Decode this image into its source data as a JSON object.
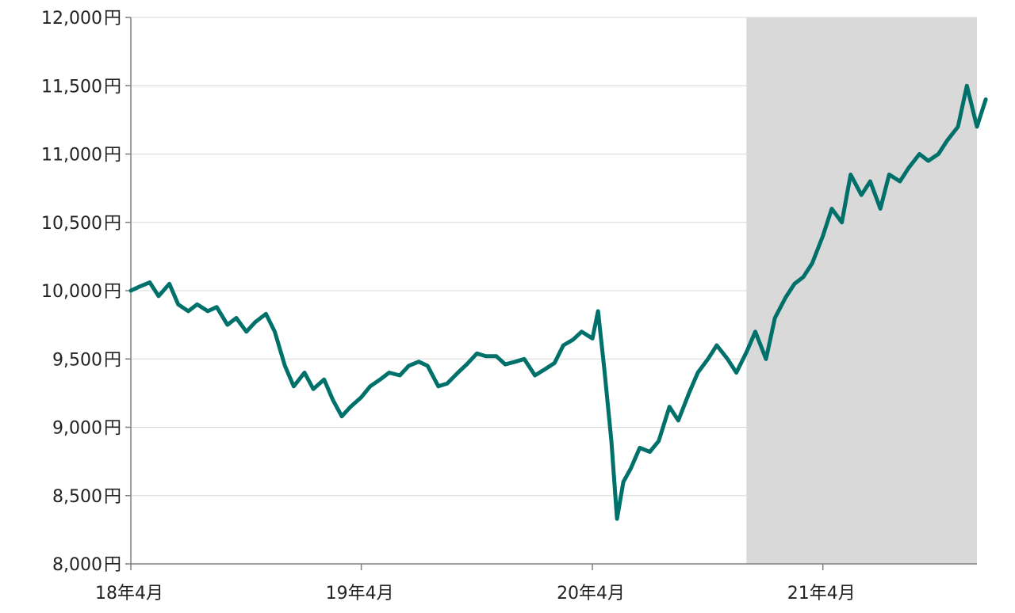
{
  "chart_data": {
    "type": "line",
    "title": "",
    "xlabel": "",
    "ylabel": "",
    "ylim": [
      8000,
      12000
    ],
    "yticks": [
      {
        "value": 8000,
        "label": "8,000円"
      },
      {
        "value": 8500,
        "label": "8,500円"
      },
      {
        "value": 9000,
        "label": "9,000円"
      },
      {
        "value": 9500,
        "label": "9,500円"
      },
      {
        "value": 10000,
        "label": "10,000円"
      },
      {
        "value": 10500,
        "label": "10,500円"
      },
      {
        "value": 11000,
        "label": "11,000円"
      },
      {
        "value": 11500,
        "label": "11,500円"
      },
      {
        "value": 12000,
        "label": "12,000円"
      }
    ],
    "xlim": [
      "2018-04",
      "2021-12"
    ],
    "xticks": [
      {
        "value": "2018-04",
        "label": "18年4月"
      },
      {
        "value": "2019-04",
        "label": "19年4月"
      },
      {
        "value": "2020-04",
        "label": "20年4月"
      },
      {
        "value": "2021-04",
        "label": "21年4月"
      }
    ],
    "shaded_region": {
      "from": "2020-12",
      "to": "2021-12",
      "color": "#d9d9d9"
    },
    "grid": true,
    "legend": "none",
    "series": [
      {
        "color": "#00706b",
        "points": [
          [
            "2018-04-01",
            10000
          ],
          [
            "2018-04-15",
            10030
          ],
          [
            "2018-05-01",
            10060
          ],
          [
            "2018-05-15",
            9960
          ],
          [
            "2018-06-01",
            10050
          ],
          [
            "2018-06-15",
            9900
          ],
          [
            "2018-07-01",
            9850
          ],
          [
            "2018-07-15",
            9900
          ],
          [
            "2018-08-01",
            9850
          ],
          [
            "2018-08-15",
            9880
          ],
          [
            "2018-09-01",
            9750
          ],
          [
            "2018-09-15",
            9800
          ],
          [
            "2018-10-01",
            9700
          ],
          [
            "2018-10-15",
            9770
          ],
          [
            "2018-11-01",
            9830
          ],
          [
            "2018-11-15",
            9700
          ],
          [
            "2018-12-01",
            9450
          ],
          [
            "2018-12-15",
            9300
          ],
          [
            "2019-01-01",
            9400
          ],
          [
            "2019-01-15",
            9280
          ],
          [
            "2019-02-01",
            9350
          ],
          [
            "2019-02-15",
            9200
          ],
          [
            "2019-03-01",
            9080
          ],
          [
            "2019-03-15",
            9150
          ],
          [
            "2019-04-01",
            9220
          ],
          [
            "2019-04-15",
            9300
          ],
          [
            "2019-05-01",
            9350
          ],
          [
            "2019-05-15",
            9400
          ],
          [
            "2019-06-01",
            9380
          ],
          [
            "2019-06-15",
            9450
          ],
          [
            "2019-07-01",
            9480
          ],
          [
            "2019-07-15",
            9450
          ],
          [
            "2019-08-01",
            9300
          ],
          [
            "2019-08-15",
            9320
          ],
          [
            "2019-09-01",
            9400
          ],
          [
            "2019-09-15",
            9460
          ],
          [
            "2019-10-01",
            9540
          ],
          [
            "2019-10-15",
            9520
          ],
          [
            "2019-11-01",
            9520
          ],
          [
            "2019-11-15",
            9460
          ],
          [
            "2019-12-01",
            9480
          ],
          [
            "2019-12-15",
            9500
          ],
          [
            "2020-01-01",
            9380
          ],
          [
            "2020-01-15",
            9420
          ],
          [
            "2020-02-01",
            9470
          ],
          [
            "2020-02-15",
            9600
          ],
          [
            "2020-03-01",
            9640
          ],
          [
            "2020-03-15",
            9700
          ],
          [
            "2020-04-01",
            9650
          ],
          [
            "2020-04-10",
            9850
          ],
          [
            "2020-04-20",
            9420
          ],
          [
            "2020-05-01",
            8900
          ],
          [
            "2020-05-10",
            8330
          ],
          [
            "2020-05-20",
            8600
          ],
          [
            "2020-06-01",
            8700
          ],
          [
            "2020-06-15",
            8850
          ],
          [
            "2020-07-01",
            8820
          ],
          [
            "2020-07-15",
            8900
          ],
          [
            "2020-08-01",
            9150
          ],
          [
            "2020-08-15",
            9050
          ],
          [
            "2020-09-01",
            9250
          ],
          [
            "2020-09-15",
            9400
          ],
          [
            "2020-10-01",
            9500
          ],
          [
            "2020-10-15",
            9600
          ],
          [
            "2020-11-01",
            9500
          ],
          [
            "2020-11-15",
            9400
          ],
          [
            "2020-12-01",
            9550
          ],
          [
            "2020-12-15",
            9700
          ],
          [
            "2021-01-01",
            9500
          ],
          [
            "2021-01-15",
            9800
          ],
          [
            "2021-02-01",
            9950
          ],
          [
            "2021-02-15",
            10050
          ],
          [
            "2021-03-01",
            10100
          ],
          [
            "2021-03-15",
            10200
          ],
          [
            "2021-04-01",
            10400
          ],
          [
            "2021-04-15",
            10600
          ],
          [
            "2021-05-01",
            10500
          ],
          [
            "2021-05-15",
            10850
          ],
          [
            "2021-06-01",
            10700
          ],
          [
            "2021-06-15",
            10800
          ],
          [
            "2021-07-01",
            10600
          ],
          [
            "2021-07-15",
            10850
          ],
          [
            "2021-08-01",
            10800
          ],
          [
            "2021-08-15",
            10900
          ],
          [
            "2021-09-01",
            11000
          ],
          [
            "2021-09-15",
            10950
          ],
          [
            "2021-10-01",
            11000
          ],
          [
            "2021-10-15",
            11100
          ],
          [
            "2021-11-01",
            11200
          ],
          [
            "2021-11-15",
            11500
          ],
          [
            "2021-12-01",
            11200
          ],
          [
            "2021-12-15",
            11400
          ]
        ]
      }
    ]
  }
}
